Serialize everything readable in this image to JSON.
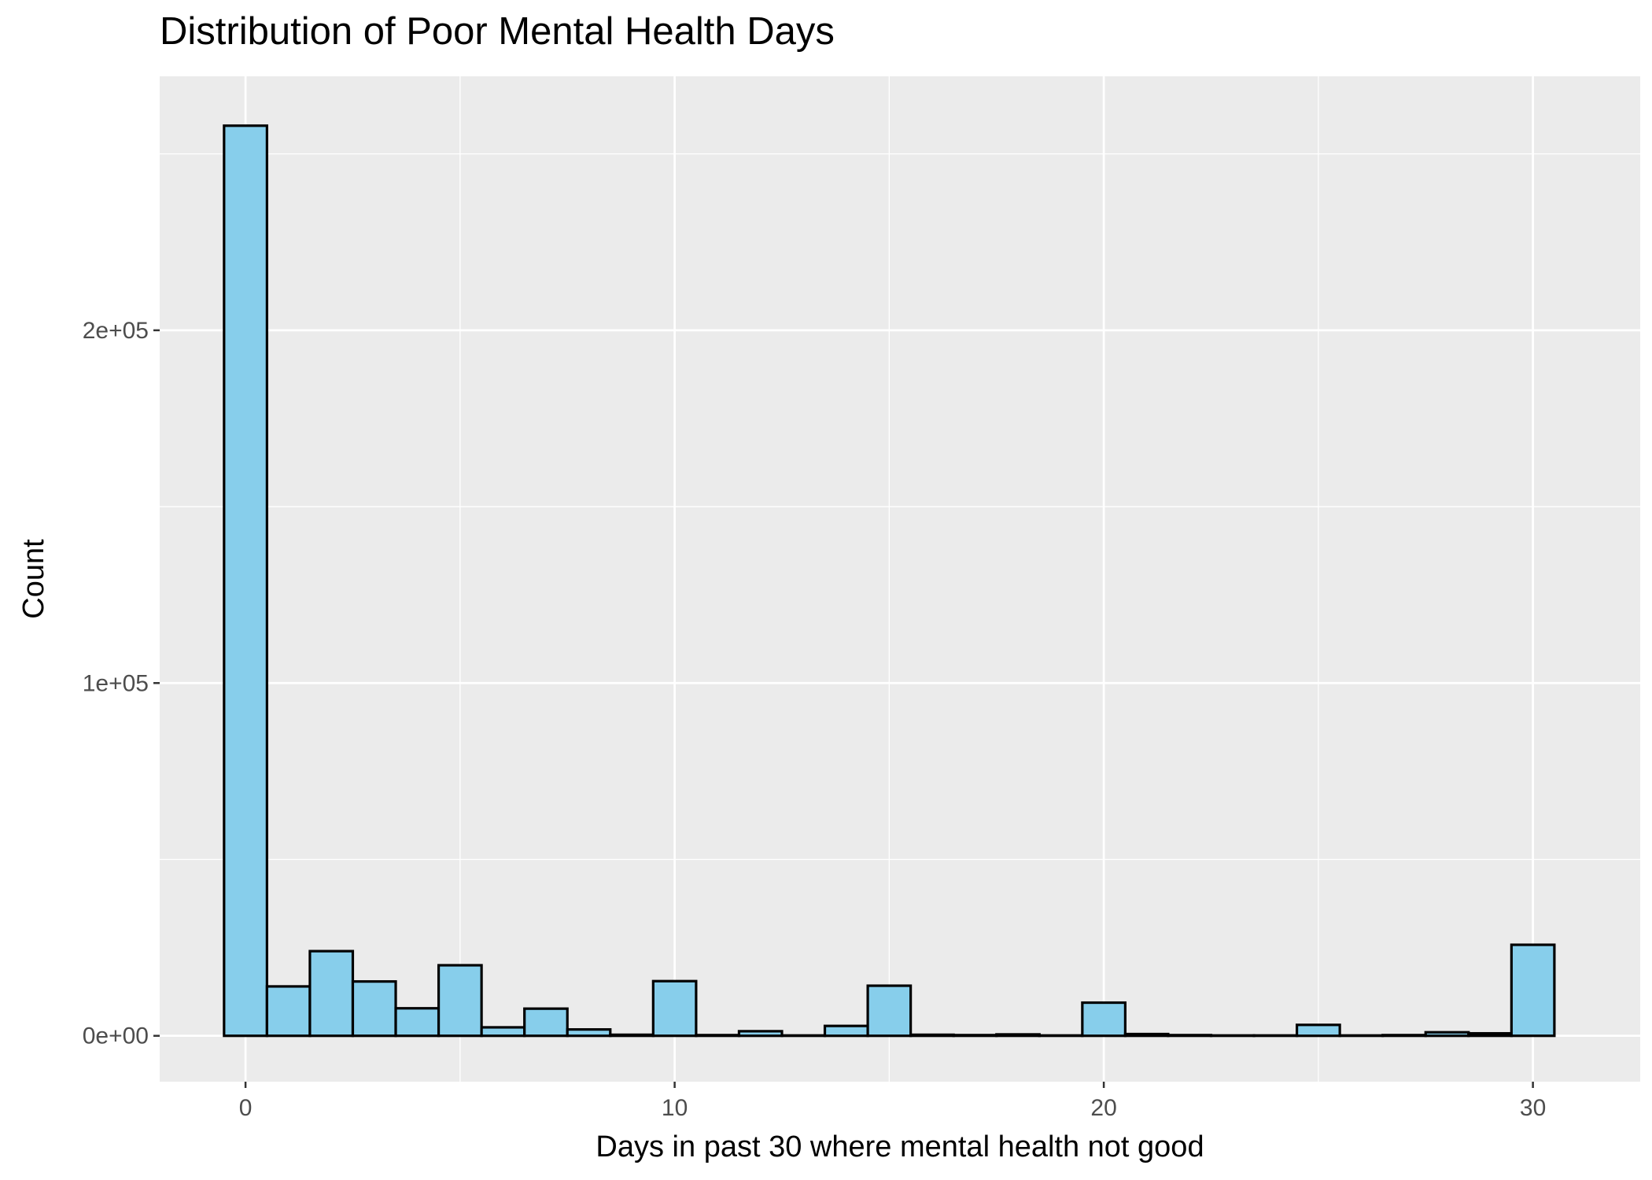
{
  "chart_data": {
    "type": "bar",
    "title": "Distribution of Poor Mental Health Days",
    "xlabel": "Days in past 30 where mental health not good",
    "ylabel": "Count",
    "xlim": [
      -2,
      32.5
    ],
    "ylim": [
      -13000,
      272000
    ],
    "x_ticks": [
      0,
      10,
      20,
      30
    ],
    "x_tick_labels": [
      "0",
      "10",
      "20",
      "30"
    ],
    "y_ticks": [
      0,
      100000,
      200000
    ],
    "y_tick_labels": [
      "0e+00",
      "1e+05",
      "2e+05"
    ],
    "bin_width": 1,
    "x": [
      0,
      1,
      2,
      3,
      4,
      5,
      6,
      7,
      8,
      9,
      10,
      11,
      12,
      13,
      14,
      15,
      16,
      17,
      18,
      19,
      20,
      21,
      22,
      23,
      24,
      25,
      26,
      27,
      28,
      29,
      30
    ],
    "values": [
      258000,
      14000,
      24000,
      15400,
      7800,
      20000,
      2400,
      7700,
      1800,
      300,
      15500,
      200,
      1300,
      100,
      2800,
      14200,
      300,
      200,
      400,
      100,
      9400,
      500,
      200,
      100,
      100,
      3100,
      100,
      200,
      1000,
      700,
      25800
    ],
    "grid": true,
    "colors": {
      "bar_fill": "#87CEEB",
      "bar_stroke": "#000000",
      "panel_background": "#EBEBEB",
      "grid": "#FFFFFF"
    }
  }
}
